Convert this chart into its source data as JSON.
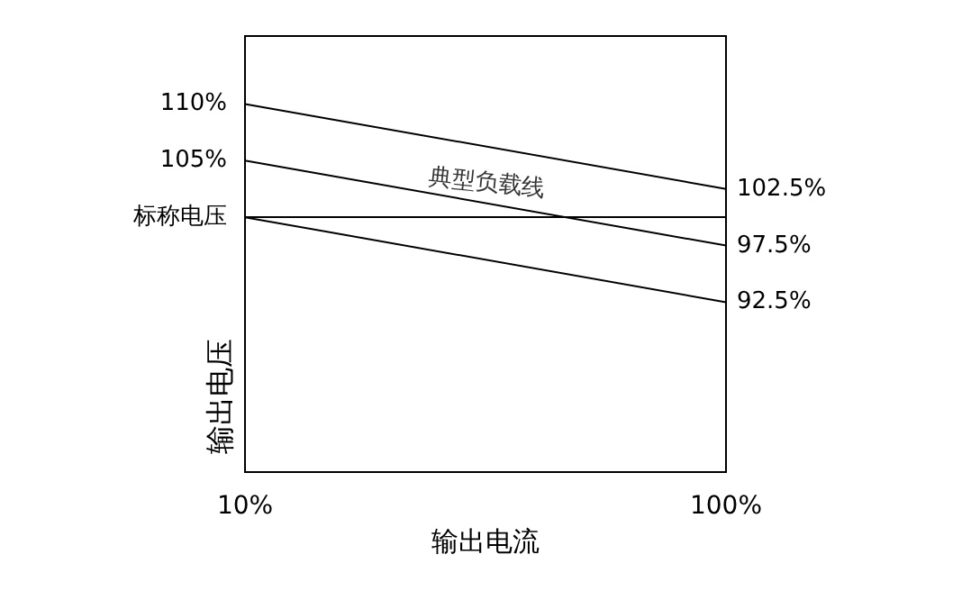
{
  "chart_data": {
    "type": "line",
    "xlabel": "输出电流",
    "ylabel": "输出电压",
    "x": [
      10,
      100
    ],
    "series": [
      {
        "color": "#000000",
        "values": [
          110,
          102.5
        ]
      },
      {
        "color": "#000000",
        "values": [
          105,
          97.5
        ]
      },
      {
        "color": "#000000",
        "values": [
          100,
          92.5
        ]
      }
    ],
    "xlim": [
      10,
      100
    ],
    "xticks": [
      {
        "value": 10,
        "label": "10%"
      },
      {
        "value": 100,
        "label": "100%"
      }
    ],
    "ylim": [
      77.5,
      116
    ],
    "yticks": [
      {
        "value": 110,
        "label": "110%"
      },
      {
        "value": 105,
        "label": "105%"
      },
      {
        "value": 100,
        "label": "标称电压"
      }
    ],
    "y2lim": [
      77.5,
      116
    ],
    "y2ticks": [
      {
        "value": 102.5,
        "label": "102.5%"
      },
      {
        "value": 97.5,
        "label": "97.5%"
      },
      {
        "value": 92.5,
        "label": "92.5%"
      }
    ],
    "ref_lines": [
      {
        "axis": "y",
        "value": 100,
        "color": "#000000"
      }
    ],
    "annotations": [
      {
        "text": "典型负载线",
        "x": 55,
        "y": 101.3
      }
    ],
    "grid": false,
    "marker": "none",
    "line_style": "solid"
  }
}
